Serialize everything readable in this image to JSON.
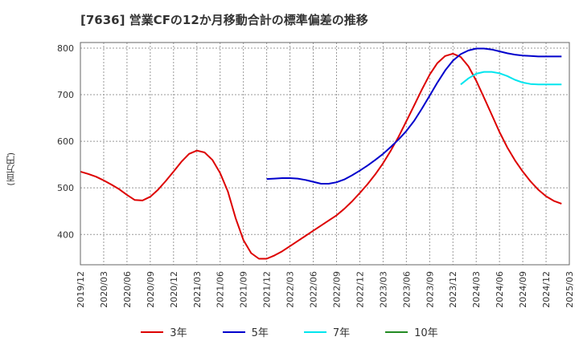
{
  "title": "[7636]  営業CFの12か月移動合計の標準偏差の推移",
  "ylabel": "(百万円)",
  "chart_data": {
    "type": "line",
    "title": "[7636]  営業CFの12か月移動合計の標準偏差の推移",
    "ylabel": "(百万円)",
    "xlabel": "",
    "ylim": [
      335,
      812
    ],
    "yticks": [
      400,
      500,
      600,
      700,
      800
    ],
    "xlim": [
      "2019-12",
      "2025-03"
    ],
    "xticks": [
      "2019/12",
      "2020/03",
      "2020/06",
      "2020/09",
      "2020/12",
      "2021/03",
      "2021/06",
      "2021/09",
      "2021/12",
      "2022/03",
      "2022/06",
      "2022/09",
      "2022/12",
      "2023/03",
      "2023/06",
      "2023/09",
      "2023/12",
      "2024/03",
      "2024/06",
      "2024/09",
      "2024/12",
      "2025/03"
    ],
    "grid": true,
    "legend_position": "bottom",
    "series": [
      {
        "name": "3年",
        "color": "#dd0000",
        "points": [
          [
            "2019-12",
            535
          ],
          [
            "2020-01",
            530
          ],
          [
            "2020-02",
            524
          ],
          [
            "2020-03",
            516
          ],
          [
            "2020-04",
            507
          ],
          [
            "2020-05",
            497
          ],
          [
            "2020-06",
            485
          ],
          [
            "2020-07",
            474
          ],
          [
            "2020-08",
            473
          ],
          [
            "2020-09",
            481
          ],
          [
            "2020-10",
            496
          ],
          [
            "2020-11",
            515
          ],
          [
            "2020-12",
            535
          ],
          [
            "2021-01",
            556
          ],
          [
            "2021-02",
            573
          ],
          [
            "2021-03",
            580
          ],
          [
            "2021-04",
            576
          ],
          [
            "2021-05",
            560
          ],
          [
            "2021-06",
            532
          ],
          [
            "2021-07",
            492
          ],
          [
            "2021-08",
            435
          ],
          [
            "2021-09",
            388
          ],
          [
            "2021-10",
            360
          ],
          [
            "2021-11",
            348
          ],
          [
            "2021-12",
            348
          ],
          [
            "2022-01",
            355
          ],
          [
            "2022-02",
            364
          ],
          [
            "2022-03",
            375
          ],
          [
            "2022-04",
            386
          ],
          [
            "2022-05",
            397
          ],
          [
            "2022-06",
            408
          ],
          [
            "2022-07",
            419
          ],
          [
            "2022-08",
            430
          ],
          [
            "2022-09",
            441
          ],
          [
            "2022-10",
            455
          ],
          [
            "2022-11",
            471
          ],
          [
            "2022-12",
            489
          ],
          [
            "2023-01",
            508
          ],
          [
            "2023-02",
            529
          ],
          [
            "2023-03",
            553
          ],
          [
            "2023-04",
            580
          ],
          [
            "2023-05",
            610
          ],
          [
            "2023-06",
            643
          ],
          [
            "2023-07",
            677
          ],
          [
            "2023-08",
            711
          ],
          [
            "2023-09",
            743
          ],
          [
            "2023-10",
            768
          ],
          [
            "2023-11",
            783
          ],
          [
            "2023-12",
            788
          ],
          [
            "2024-01",
            781
          ],
          [
            "2024-02",
            761
          ],
          [
            "2024-03",
            730
          ],
          [
            "2024-04",
            694
          ],
          [
            "2024-05",
            657
          ],
          [
            "2024-06",
            620
          ],
          [
            "2024-07",
            587
          ],
          [
            "2024-08",
            559
          ],
          [
            "2024-09",
            535
          ],
          [
            "2024-10",
            514
          ],
          [
            "2024-11",
            496
          ],
          [
            "2024-12",
            482
          ],
          [
            "2025-01",
            472
          ],
          [
            "2025-02",
            466
          ]
        ]
      },
      {
        "name": "5年",
        "color": "#0000cc",
        "points": [
          [
            "2021-12",
            519
          ],
          [
            "2022-01",
            520
          ],
          [
            "2022-02",
            521
          ],
          [
            "2022-03",
            521
          ],
          [
            "2022-04",
            520
          ],
          [
            "2022-05",
            517
          ],
          [
            "2022-06",
            513
          ],
          [
            "2022-07",
            509
          ],
          [
            "2022-08",
            509
          ],
          [
            "2022-09",
            512
          ],
          [
            "2022-10",
            518
          ],
          [
            "2022-11",
            527
          ],
          [
            "2022-12",
            537
          ],
          [
            "2023-01",
            548
          ],
          [
            "2023-02",
            560
          ],
          [
            "2023-03",
            573
          ],
          [
            "2023-04",
            588
          ],
          [
            "2023-05",
            604
          ],
          [
            "2023-06",
            622
          ],
          [
            "2023-07",
            644
          ],
          [
            "2023-08",
            670
          ],
          [
            "2023-09",
            698
          ],
          [
            "2023-10",
            726
          ],
          [
            "2023-11",
            752
          ],
          [
            "2023-12",
            773
          ],
          [
            "2024-01",
            787
          ],
          [
            "2024-02",
            795
          ],
          [
            "2024-03",
            799
          ],
          [
            "2024-04",
            799
          ],
          [
            "2024-05",
            797
          ],
          [
            "2024-06",
            793
          ],
          [
            "2024-07",
            789
          ],
          [
            "2024-08",
            786
          ],
          [
            "2024-09",
            784
          ],
          [
            "2024-10",
            783
          ],
          [
            "2024-11",
            782
          ],
          [
            "2024-12",
            782
          ],
          [
            "2025-01",
            782
          ],
          [
            "2025-02",
            782
          ]
        ]
      },
      {
        "name": "7年",
        "color": "#00e5ee",
        "points": [
          [
            "2024-01",
            722
          ],
          [
            "2024-02",
            735
          ],
          [
            "2024-03",
            745
          ],
          [
            "2024-04",
            749
          ],
          [
            "2024-05",
            749
          ],
          [
            "2024-06",
            746
          ],
          [
            "2024-07",
            740
          ],
          [
            "2024-08",
            732
          ],
          [
            "2024-09",
            726
          ],
          [
            "2024-10",
            723
          ],
          [
            "2024-11",
            722
          ],
          [
            "2024-12",
            722
          ],
          [
            "2025-01",
            722
          ],
          [
            "2025-02",
            722
          ]
        ]
      },
      {
        "name": "10年",
        "color": "#228b22",
        "points": []
      }
    ]
  }
}
